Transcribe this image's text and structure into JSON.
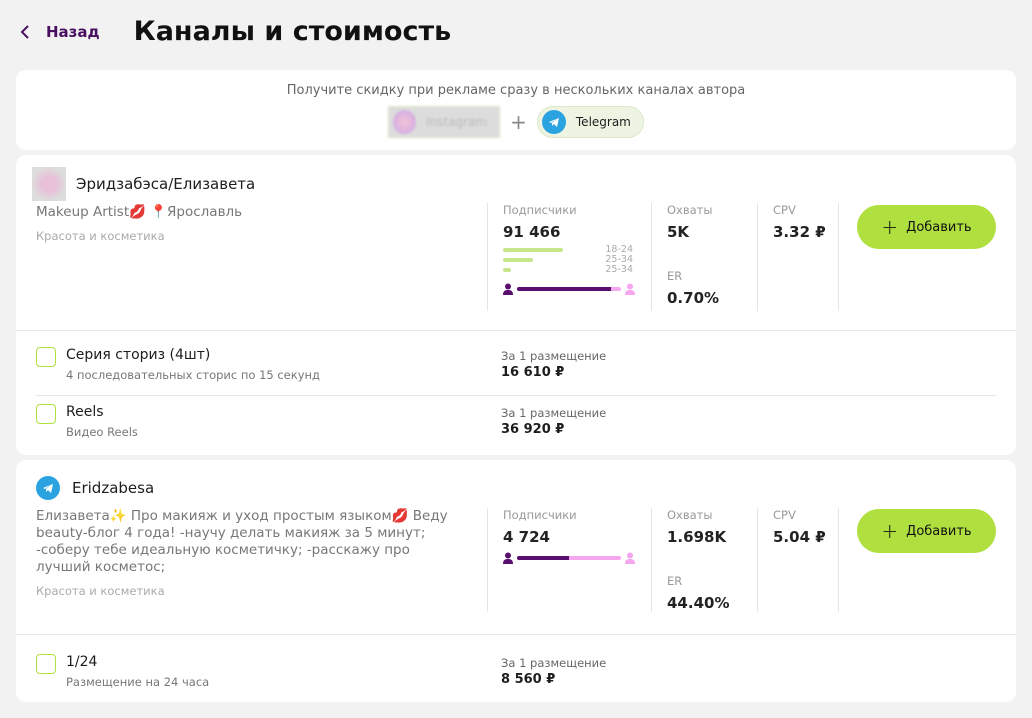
{
  "header": {
    "back_label": "Назад",
    "title": "Каналы и стоимость"
  },
  "promo": {
    "text": "Получите скидку при рекламе сразу в нескольких каналах автора",
    "chips": [
      {
        "label": "Instagram",
        "icon": "instagram-avatar"
      },
      {
        "label": "Telegram",
        "icon": "telegram-icon"
      }
    ],
    "plus": "+"
  },
  "accounts": [
    {
      "platform": "instagram",
      "name": "Эридзабэса/Елизавета",
      "description": "Makeup Artist💋 📍Ярославль",
      "category": "Красота и косметика",
      "subscribers_label": "Подписчики",
      "subscribers": "91 466",
      "age": [
        {
          "label": "18-24",
          "share": 0.6
        },
        {
          "label": "25-34",
          "share": 0.3
        },
        {
          "label": "25-34",
          "share": 0.08
        }
      ],
      "male_share": 0.9,
      "reach_label": "Охваты",
      "reach": "5K",
      "er_label": "ER",
      "er": "0.70%",
      "cpv_label": "CPV",
      "cpv": "3.32 ₽",
      "add_label": "Добавить",
      "options": [
        {
          "name": "Серия сториз (4шт)",
          "sub": "4 последовательных сторис по 15 секунд",
          "price_label": "За 1 размещение",
          "price": "16 610 ₽"
        },
        {
          "name": "Reels",
          "sub": "Видео Reels",
          "price_label": "За 1 размещение",
          "price": "36 920 ₽"
        }
      ]
    },
    {
      "platform": "telegram",
      "name": "Eridzabesa",
      "description": "Елизавета✨ Про макияж и уход простым языком💋 Веду beauty-блог 4 года! -научу делать макияж за 5 минут; -соберу тебе идеальную косметичку; -расскажу про лучший косметос;",
      "category": "Красота и косметика",
      "subscribers_label": "Подписчики",
      "subscribers": "4 724",
      "male_share": 0.5,
      "reach_label": "Охваты",
      "reach": "1.698K",
      "er_label": "ER",
      "er": "44.40%",
      "cpv_label": "CPV",
      "cpv": "5.04 ₽",
      "add_label": "Добавить",
      "options": [
        {
          "name": "1/24",
          "sub": "Размещение на 24 часа",
          "price_label": "За 1 размещение",
          "price": "8 560 ₽"
        }
      ]
    }
  ],
  "colors": {
    "accent": "#b0e040",
    "brand": "#5a0e6e",
    "female": "#f5a6ef",
    "telegram": "#2aa3e0"
  }
}
